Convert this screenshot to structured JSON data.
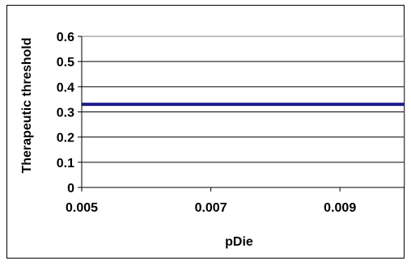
{
  "chart_data": {
    "type": "line",
    "title": "",
    "xlabel": "pDie",
    "ylabel": "Therapeutic threshold",
    "xlim": [
      0.005,
      0.01
    ],
    "ylim": [
      0,
      0.6
    ],
    "x_ticks": [
      "0.005",
      "0.007",
      "0.009"
    ],
    "x_tick_values": [
      0.005,
      0.007,
      0.009
    ],
    "y_ticks": [
      "0",
      "0.1",
      "0.2",
      "0.3",
      "0.4",
      "0.5",
      "0.6"
    ],
    "y_tick_values": [
      0,
      0.1,
      0.2,
      0.3,
      0.4,
      0.5,
      0.6
    ],
    "grid": "horizontal",
    "legend": "none",
    "series": [
      {
        "x": [
          0.005,
          0.01
        ],
        "y": [
          0.33,
          0.33
        ],
        "color": "#1c1c8c"
      }
    ]
  }
}
